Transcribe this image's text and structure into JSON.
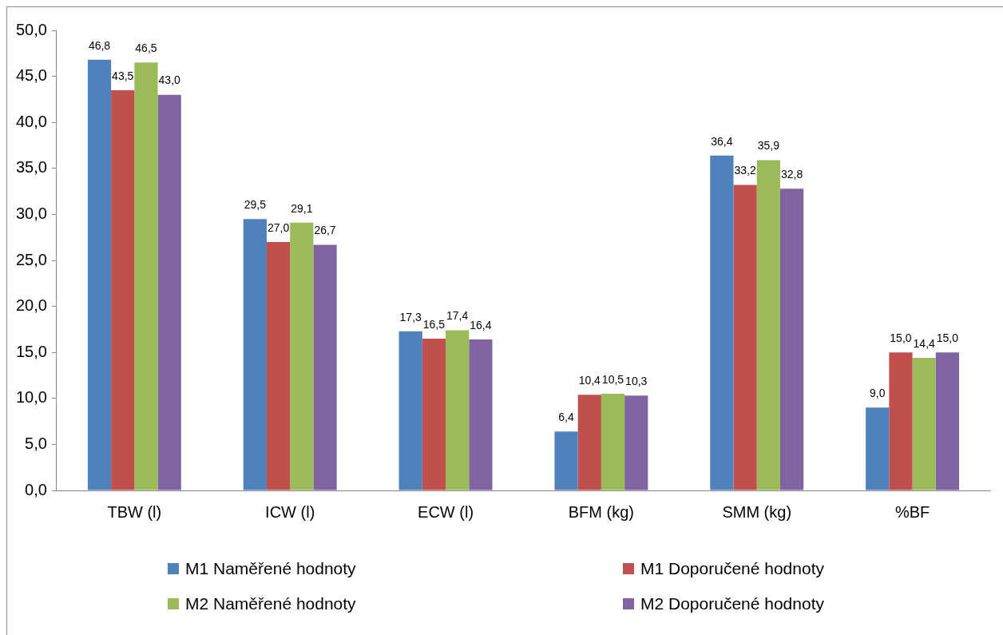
{
  "chart_data": {
    "type": "bar",
    "categories": [
      "TBW (l)",
      "ICW (l)",
      "ECW (l)",
      "BFM (kg)",
      "SMM (kg)",
      "%BF"
    ],
    "series": [
      {
        "name": "M1 Naměřené hodnoty",
        "color": "#4f81bd",
        "values": [
          46.8,
          29.5,
          17.3,
          6.4,
          36.4,
          9.0
        ],
        "value_labels": [
          "46,8",
          "29,5",
          "17,3",
          "6,4",
          "36,4",
          "9,0"
        ]
      },
      {
        "name": "M1 Doporučené hodnoty",
        "color": "#c0504d",
        "values": [
          43.5,
          27.0,
          16.5,
          10.4,
          33.2,
          15.0
        ],
        "value_labels": [
          "43,5",
          "27,0",
          "16,5",
          "10,4",
          "33,2",
          "15,0"
        ]
      },
      {
        "name": "M2 Naměřené hodnoty",
        "color": "#9bbb59",
        "values": [
          46.5,
          29.1,
          17.4,
          10.5,
          35.9,
          14.4
        ],
        "value_labels": [
          "46,5",
          "29,1",
          "17,4",
          "10,5",
          "35,9",
          "14,4"
        ]
      },
      {
        "name": "M2 Doporučené hodnoty",
        "color": "#8064a2",
        "values": [
          43.0,
          26.7,
          16.4,
          10.3,
          32.8,
          15.0
        ],
        "value_labels": [
          "43,0",
          "26,7",
          "16,4",
          "10,3",
          "32,8",
          "15,0"
        ]
      }
    ],
    "ylim": [
      0,
      50
    ],
    "yticks": [
      {
        "value": 0,
        "label": "0,0"
      },
      {
        "value": 5,
        "label": "5,0"
      },
      {
        "value": 10,
        "label": "10,0"
      },
      {
        "value": 15,
        "label": "15,0"
      },
      {
        "value": 20,
        "label": "20,0"
      },
      {
        "value": 25,
        "label": "25,0"
      },
      {
        "value": 30,
        "label": "30,0"
      },
      {
        "value": 35,
        "label": "35,0"
      },
      {
        "value": 40,
        "label": "40,0"
      },
      {
        "value": 45,
        "label": "45,0"
      },
      {
        "value": 50,
        "label": "50,0"
      }
    ],
    "grid": false,
    "legend": "bottom"
  }
}
